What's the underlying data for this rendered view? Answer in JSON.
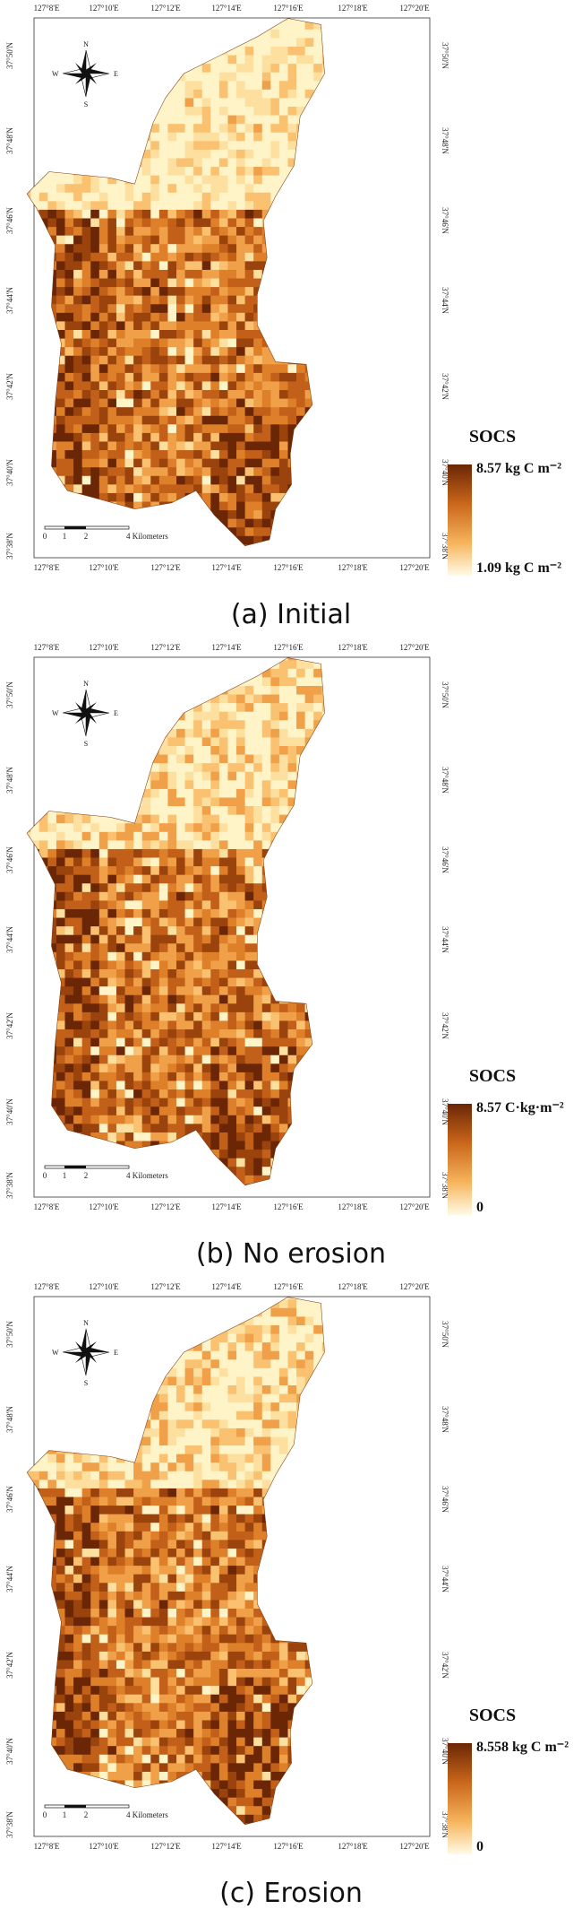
{
  "graticule": {
    "top_lon": [
      "127°8'E",
      "127°10'E",
      "127°12'E",
      "127°14'E",
      "127°16'E",
      "127°18'E",
      "127°20'E"
    ],
    "lat": [
      "37°50'N",
      "37°48'N",
      "37°46'N",
      "37°44'N",
      "37°42'N",
      "37°40'N",
      "37°38'N"
    ]
  },
  "compass": {
    "n": "N",
    "s": "S",
    "e": "E",
    "w": "W"
  },
  "scale_bar": [
    "0",
    "1",
    "2",
    "4 Kilometers"
  ],
  "panels": [
    {
      "caption": "(a) Initial",
      "legend": {
        "title": "SOCS",
        "max_label": "8.57 kg C m⁻²",
        "min_label": "1.09 kg C m⁻²"
      }
    },
    {
      "caption": "(b) No erosion",
      "legend": {
        "title": "SOCS",
        "max_label": "8.57 C·kg·m⁻²",
        "min_label": "0"
      }
    },
    {
      "caption": "(c) Erosion",
      "legend": {
        "title": "SOCS",
        "max_label": "8.558 kg C m⁻²",
        "min_label": "0"
      }
    }
  ]
}
